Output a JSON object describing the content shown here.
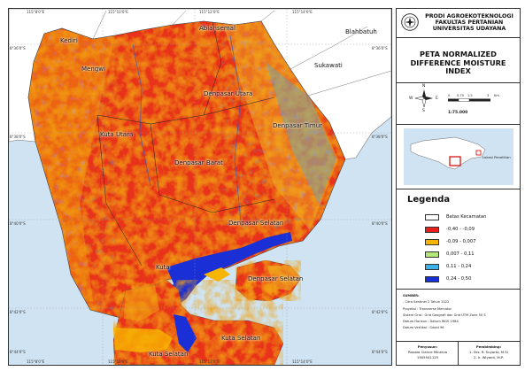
{
  "map": {
    "top_ticks": [
      "115°8'0\"E",
      "115°10'0\"E",
      "115°12'0\"E",
      "115°14'0\"E"
    ],
    "bottom_ticks": [
      "115°8'0\"E",
      "115°10'0\"E",
      "115°12'0\"E",
      "115°14'0\"E"
    ],
    "left_ticks": [
      "8°36'0\"S",
      "8°38'0\"S",
      "8°40'0\"S",
      "8°42'0\"S",
      "8°44'0\"S"
    ],
    "right_ticks": [
      "8°36'0\"S",
      "8°38'0\"S",
      "8°40'0\"S",
      "8°42'0\"S",
      "8°44'0\"S"
    ],
    "place_labels": [
      "Kediri",
      "Abiansemal",
      "Blahbatuh",
      "Mengwi",
      "Sukawati",
      "Denpasar Utara",
      "Denpasar Timur",
      "Kuta Utara",
      "Denpasar Barat",
      "Denpasar Selatan",
      "Kuta",
      "Denpasar Selatan",
      "Kuta Selatan",
      "Kuta Selatan"
    ]
  },
  "institution": {
    "line1": "PRODI AGROEKOTEKNOLOGI",
    "line2": "FAKULTAS PERTANIAN",
    "line3": "UNIVERSITAS UDAYANA"
  },
  "title": {
    "line1": "PETA NORMALIZED",
    "line2": "DIFFERENCE MOISTURE INDEX"
  },
  "scale": {
    "labels": [
      "0",
      "0.75",
      "1.5",
      "3"
    ],
    "unit": "Km",
    "ratio": "1:75.000",
    "compass": [
      "N",
      "S",
      "E",
      "W"
    ]
  },
  "inset": {
    "label": "Lokasi Penelitian"
  },
  "legend": {
    "title": "Legenda",
    "items": [
      {
        "label": "Batas Kecamatan",
        "color": "#ffffff"
      },
      {
        "label": "-0,40 - -0,09",
        "color": "#e8201c"
      },
      {
        "label": "-0,09 - 0,007",
        "color": "#f7b500"
      },
      {
        "label": "0,007 - 0,11",
        "color": "#b6e879"
      },
      {
        "label": "0,11 - 0,24",
        "color": "#3fb0e8"
      },
      {
        "label": "0,24 - 0,50",
        "color": "#1a2fd6"
      }
    ]
  },
  "meta": {
    "sumber": "SUMBER:",
    "lines": [
      "- Citra Sentinel 2 Tahun 2022",
      "Proyeksi           : Transverse Mercator",
      "Sistem Grid        : Grid Geografi dan Grid UTM Zone 50 S",
      "Datum Horizon      : Datum WGS 1984",
      "Datum Vertikal     : Geoid 96"
    ]
  },
  "credits": {
    "author_heading": "Penyusun:",
    "author_name": "Ranata Clarice Minerva",
    "author_id": "1905541125",
    "advisor_heading": "Pembimbing:",
    "advisor_1": "1. Drs. R. Suyarto, M.Si",
    "advisor_2": "2. Ir. Wiyanti, M.P."
  }
}
